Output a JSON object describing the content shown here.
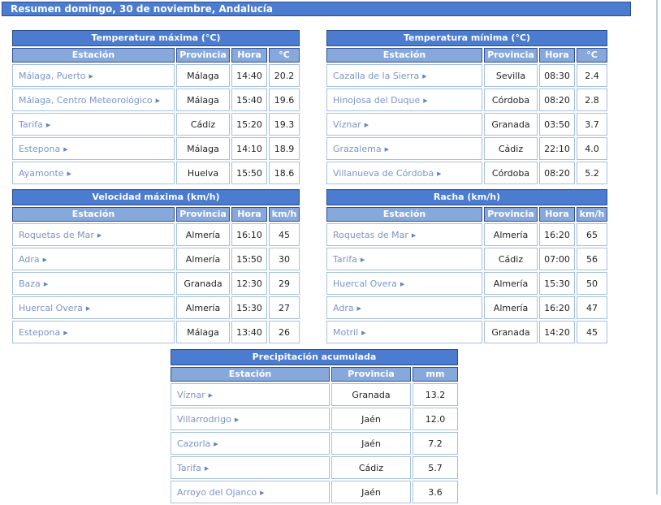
{
  "banner": {
    "text": "Resumen domingo, 30 de noviembre, Andalucía"
  },
  "colors": {
    "banner_bg": "#4b7ccf",
    "title_bg": "#4b7ccf",
    "title_border": "#2a4c8e",
    "header_bg": "#87a8da",
    "cell_border": "#a5c0de",
    "station_link": "#7b94c8",
    "text": "#222222"
  },
  "tables": [
    {
      "id": "temp-max",
      "title": "Temperatura máxima (°C)",
      "columns": [
        "Estación",
        "Provincia",
        "Hora",
        "°C"
      ],
      "rows": [
        {
          "station": "Málaga, Puerto",
          "province": "Málaga",
          "time": "14:40",
          "value": "20.2"
        },
        {
          "station": "Málaga, Centro Meteorológico",
          "province": "Málaga",
          "time": "15:40",
          "value": "19.6"
        },
        {
          "station": "Tarifa",
          "province": "Cádiz",
          "time": "15:20",
          "value": "19.3"
        },
        {
          "station": "Estepona",
          "province": "Málaga",
          "time": "14:10",
          "value": "18.9"
        },
        {
          "station": "Ayamonte",
          "province": "Huelva",
          "time": "15:50",
          "value": "18.6"
        }
      ]
    },
    {
      "id": "temp-min",
      "title": "Temperatura mínima (°C)",
      "columns": [
        "Estación",
        "Provincia",
        "Hora",
        "°C"
      ],
      "rows": [
        {
          "station": "Cazalla de la Sierra",
          "province": "Sevilla",
          "time": "08:30",
          "value": "2.4"
        },
        {
          "station": "Hinojosa del Duque",
          "province": "Córdoba",
          "time": "08:20",
          "value": "2.8"
        },
        {
          "station": "Víznar",
          "province": "Granada",
          "time": "03:50",
          "value": "3.7"
        },
        {
          "station": "Grazalema",
          "province": "Cádiz",
          "time": "22:10",
          "value": "4.0"
        },
        {
          "station": "Villanueva de Córdoba",
          "province": "Córdoba",
          "time": "08:20",
          "value": "5.2"
        }
      ]
    },
    {
      "id": "velocidad-max",
      "title": "Velocidad máxima (km/h)",
      "columns": [
        "Estación",
        "Provincia",
        "Hora",
        "km/h"
      ],
      "rows": [
        {
          "station": "Roquetas de Mar",
          "province": "Almería",
          "time": "16:10",
          "value": "45"
        },
        {
          "station": "Adra",
          "province": "Almería",
          "time": "15:50",
          "value": "30"
        },
        {
          "station": "Baza",
          "province": "Granada",
          "time": "12:30",
          "value": "29"
        },
        {
          "station": "Huercal Overa",
          "province": "Almería",
          "time": "15:30",
          "value": "27"
        },
        {
          "station": "Estepona",
          "province": "Málaga",
          "time": "13:40",
          "value": "26"
        }
      ]
    },
    {
      "id": "racha",
      "title": "Racha (km/h)",
      "columns": [
        "Estación",
        "Provincia",
        "Hora",
        "km/h"
      ],
      "rows": [
        {
          "station": "Roquetas de Mar",
          "province": "Almería",
          "time": "16:20",
          "value": "65"
        },
        {
          "station": "Tarifa",
          "province": "Cádiz",
          "time": "07:00",
          "value": "56"
        },
        {
          "station": "Huercal Overa",
          "province": "Almería",
          "time": "15:30",
          "value": "50"
        },
        {
          "station": "Adra",
          "province": "Almería",
          "time": "16:20",
          "value": "47"
        },
        {
          "station": "Motril",
          "province": "Granada",
          "time": "14:20",
          "value": "45"
        }
      ]
    },
    {
      "id": "precipitacion",
      "title": "Precipitación acumulada",
      "columns": [
        "Estación",
        "Provincia",
        "mm"
      ],
      "rows": [
        {
          "station": "Víznar",
          "province": "Granada",
          "value": "13.2"
        },
        {
          "station": "Villarrodrigo",
          "province": "Jaén",
          "value": "12.0"
        },
        {
          "station": "Cazorla",
          "province": "Jaén",
          "value": "7.2"
        },
        {
          "station": "Tarifa",
          "province": "Cádiz",
          "value": "5.7"
        },
        {
          "station": "Arroyo del Ojanco",
          "province": "Jaén",
          "value": "3.6"
        }
      ]
    }
  ]
}
